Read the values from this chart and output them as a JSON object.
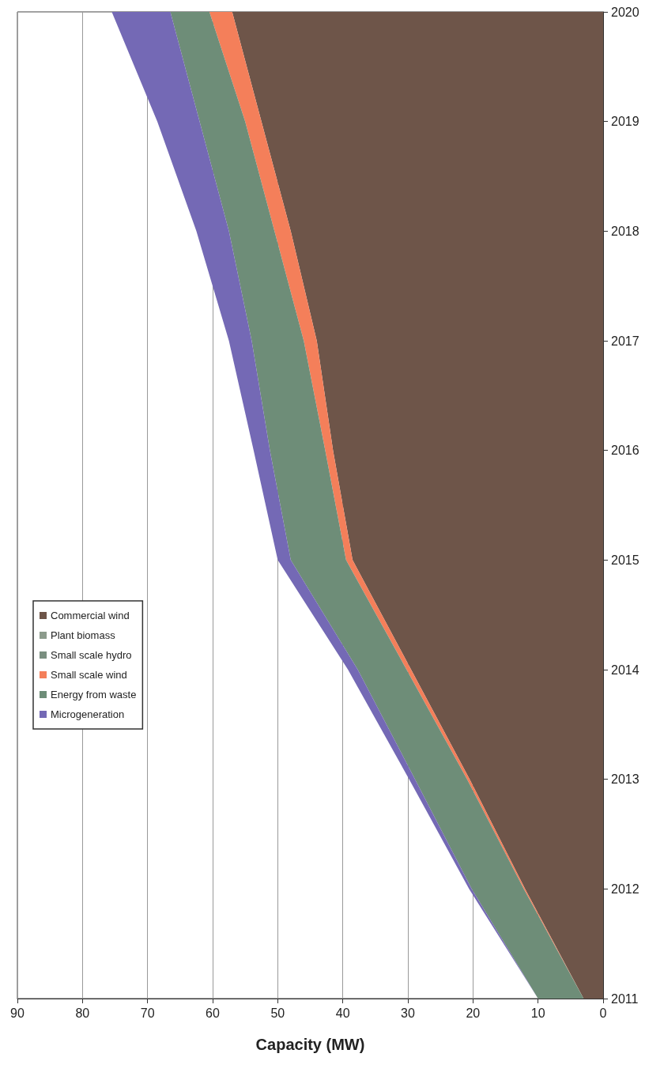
{
  "chart_data": {
    "type": "area",
    "stacked": true,
    "orientation": "horizontal",
    "xlabel": "Capacity (MW)",
    "categories": [
      "2020",
      "2019",
      "2018",
      "2017",
      "2016",
      "2015",
      "2014",
      "2013",
      "2012",
      "2011"
    ],
    "series": [
      {
        "name": "Commercial wind",
        "color": "#6e5549",
        "values": [
          57,
          52.5,
          48,
          44,
          41.5,
          38.5,
          29.5,
          20.5,
          12,
          3
        ]
      },
      {
        "name": "Plant biomass",
        "color": "#8c9b8c",
        "values": [
          null,
          null,
          null,
          null,
          null,
          null,
          null,
          null,
          null,
          null
        ]
      },
      {
        "name": "Small scale hydro",
        "color": "#7a8f80",
        "values": [
          null,
          null,
          null,
          null,
          null,
          null,
          null,
          null,
          null,
          null
        ]
      },
      {
        "name": "Small scale wind",
        "color": "#f47f5a",
        "values": [
          3.5,
          2.5,
          2.5,
          2,
          1.2,
          1,
          0.7,
          0.4,
          0.2,
          0
        ]
      },
      {
        "name": "Energy from waste",
        "color": "#6e8d78",
        "values": [
          6,
          7,
          7,
          8,
          8.5,
          8.5,
          7.5,
          8,
          8,
          7
        ]
      },
      {
        "name": "Microgeneration",
        "color": "#7469b5",
        "values": [
          9,
          6.5,
          5,
          3.5,
          2.5,
          2,
          1.5,
          0.9,
          0.4,
          0
        ]
      }
    ],
    "xlim": [
      90,
      0
    ],
    "xticks": [
      90,
      80,
      70,
      60,
      50,
      40,
      30,
      20,
      10,
      0
    ],
    "grid": "x",
    "legend": "left",
    "marker": "none"
  }
}
